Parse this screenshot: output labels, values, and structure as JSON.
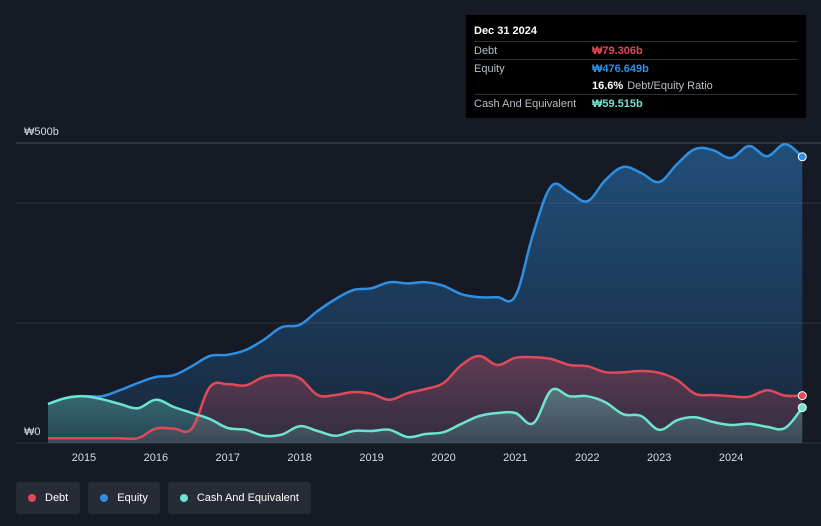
{
  "colors": {
    "debt": "#e0495a",
    "equity": "#2f8fe3",
    "cash": "#6fe3d2",
    "grid": "#2e3440",
    "axis_text": "#d7dbe2"
  },
  "tooltip": {
    "date": "Dec 31 2024",
    "debt_label": "Debt",
    "debt_value": "₩79.306b",
    "equity_label": "Equity",
    "equity_value": "₩476.649b",
    "ratio_value": "16.6%",
    "ratio_label": "Debt/Equity Ratio",
    "cash_label": "Cash And Equivalent",
    "cash_value": "₩59.515b"
  },
  "legend": [
    {
      "key": "debt",
      "label": "Debt"
    },
    {
      "key": "equity",
      "label": "Equity"
    },
    {
      "key": "cash",
      "label": "Cash And Equivalent"
    }
  ],
  "chart_data": {
    "type": "area",
    "title": "",
    "xlabel": "",
    "ylabel": "",
    "xlim": [
      2014.5,
      2025.0
    ],
    "ylim": [
      0,
      500
    ],
    "y_tick_labels": [
      {
        "value": 500,
        "label": "₩500b"
      },
      {
        "value": 0,
        "label": "₩0"
      }
    ],
    "gridlines": [
      500,
      400,
      200,
      0
    ],
    "x_ticks": [
      2015,
      2016,
      2017,
      2018,
      2019,
      2020,
      2021,
      2022,
      2023,
      2024
    ],
    "series": [
      {
        "name": "Equity",
        "key": "equity",
        "points": [
          [
            2014.5,
            65
          ],
          [
            2014.75,
            75
          ],
          [
            2015.0,
            78
          ],
          [
            2015.25,
            78
          ],
          [
            2015.5,
            88
          ],
          [
            2015.75,
            100
          ],
          [
            2016.0,
            110
          ],
          [
            2016.25,
            113
          ],
          [
            2016.5,
            128
          ],
          [
            2016.75,
            145
          ],
          [
            2017.0,
            147
          ],
          [
            2017.25,
            155
          ],
          [
            2017.5,
            172
          ],
          [
            2017.75,
            193
          ],
          [
            2018.0,
            197
          ],
          [
            2018.25,
            220
          ],
          [
            2018.5,
            240
          ],
          [
            2018.75,
            255
          ],
          [
            2019.0,
            258
          ],
          [
            2019.25,
            268
          ],
          [
            2019.5,
            266
          ],
          [
            2019.75,
            268
          ],
          [
            2020.0,
            262
          ],
          [
            2020.25,
            248
          ],
          [
            2020.5,
            243
          ],
          [
            2020.75,
            243
          ],
          [
            2021.0,
            245
          ],
          [
            2021.25,
            350
          ],
          [
            2021.5,
            428
          ],
          [
            2021.75,
            418
          ],
          [
            2022.0,
            403
          ],
          [
            2022.25,
            438
          ],
          [
            2022.5,
            460
          ],
          [
            2022.75,
            450
          ],
          [
            2023.0,
            435
          ],
          [
            2023.25,
            465
          ],
          [
            2023.5,
            490
          ],
          [
            2023.75,
            488
          ],
          [
            2024.0,
            475
          ],
          [
            2024.25,
            495
          ],
          [
            2024.5,
            478
          ],
          [
            2024.75,
            498
          ],
          [
            2024.99,
            477
          ]
        ]
      },
      {
        "name": "Debt",
        "key": "debt",
        "points": [
          [
            2014.5,
            8
          ],
          [
            2014.75,
            8
          ],
          [
            2015.0,
            8
          ],
          [
            2015.25,
            8
          ],
          [
            2015.5,
            8
          ],
          [
            2015.75,
            8
          ],
          [
            2016.0,
            24
          ],
          [
            2016.25,
            24
          ],
          [
            2016.5,
            24
          ],
          [
            2016.75,
            93
          ],
          [
            2017.0,
            98
          ],
          [
            2017.25,
            96
          ],
          [
            2017.5,
            110
          ],
          [
            2017.75,
            113
          ],
          [
            2018.0,
            108
          ],
          [
            2018.25,
            80
          ],
          [
            2018.5,
            80
          ],
          [
            2018.75,
            85
          ],
          [
            2019.0,
            82
          ],
          [
            2019.25,
            72
          ],
          [
            2019.5,
            83
          ],
          [
            2019.75,
            90
          ],
          [
            2020.0,
            100
          ],
          [
            2020.25,
            130
          ],
          [
            2020.5,
            145
          ],
          [
            2020.75,
            130
          ],
          [
            2021.0,
            142
          ],
          [
            2021.25,
            143
          ],
          [
            2021.5,
            140
          ],
          [
            2021.75,
            130
          ],
          [
            2022.0,
            128
          ],
          [
            2022.25,
            118
          ],
          [
            2022.5,
            118
          ],
          [
            2022.75,
            120
          ],
          [
            2023.0,
            117
          ],
          [
            2023.25,
            105
          ],
          [
            2023.5,
            82
          ],
          [
            2023.75,
            80
          ],
          [
            2024.0,
            78
          ],
          [
            2024.25,
            77
          ],
          [
            2024.5,
            88
          ],
          [
            2024.75,
            79
          ],
          [
            2024.99,
            79
          ]
        ]
      },
      {
        "name": "Cash And Equivalent",
        "key": "cash",
        "points": [
          [
            2014.5,
            65
          ],
          [
            2014.75,
            75
          ],
          [
            2015.0,
            78
          ],
          [
            2015.25,
            73
          ],
          [
            2015.5,
            65
          ],
          [
            2015.75,
            58
          ],
          [
            2016.0,
            72
          ],
          [
            2016.25,
            60
          ],
          [
            2016.5,
            50
          ],
          [
            2016.75,
            40
          ],
          [
            2017.0,
            25
          ],
          [
            2017.25,
            22
          ],
          [
            2017.5,
            12
          ],
          [
            2017.75,
            14
          ],
          [
            2018.0,
            28
          ],
          [
            2018.25,
            20
          ],
          [
            2018.5,
            12
          ],
          [
            2018.75,
            20
          ],
          [
            2019.0,
            20
          ],
          [
            2019.25,
            22
          ],
          [
            2019.5,
            10
          ],
          [
            2019.75,
            15
          ],
          [
            2020.0,
            18
          ],
          [
            2020.25,
            32
          ],
          [
            2020.5,
            45
          ],
          [
            2020.75,
            50
          ],
          [
            2021.0,
            50
          ],
          [
            2021.25,
            33
          ],
          [
            2021.5,
            88
          ],
          [
            2021.75,
            78
          ],
          [
            2022.0,
            78
          ],
          [
            2022.25,
            68
          ],
          [
            2022.5,
            48
          ],
          [
            2022.75,
            45
          ],
          [
            2023.0,
            22
          ],
          [
            2023.25,
            38
          ],
          [
            2023.5,
            43
          ],
          [
            2023.75,
            35
          ],
          [
            2024.0,
            30
          ],
          [
            2024.25,
            32
          ],
          [
            2024.5,
            27
          ],
          [
            2024.75,
            25
          ],
          [
            2024.99,
            59
          ]
        ]
      }
    ]
  }
}
